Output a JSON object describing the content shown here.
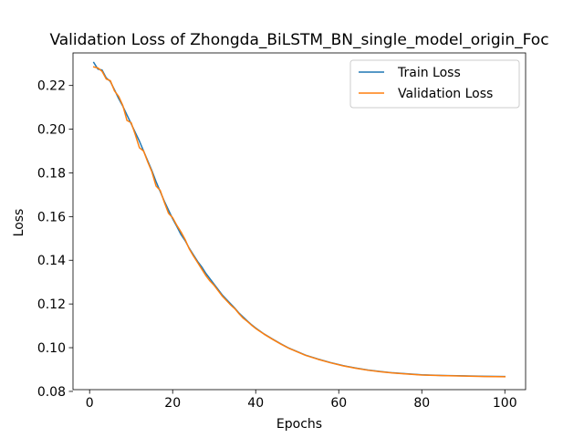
{
  "chart_data": {
    "type": "line",
    "title": "Validation Loss of Zhongda_BiLSTM_BN_single_model_origin_Foc",
    "xlabel": "Epochs",
    "ylabel": "Loss",
    "xlim": [
      -4,
      105
    ],
    "ylim": [
      0.0808,
      0.2349
    ],
    "x_ticks": [
      0,
      20,
      40,
      60,
      80,
      100
    ],
    "y_ticks": [
      0.08,
      0.1,
      0.12,
      0.14,
      0.16,
      0.18,
      0.2,
      0.22
    ],
    "y_tick_labels": [
      "0.08",
      "0.10",
      "0.12",
      "0.14",
      "0.16",
      "0.18",
      "0.20",
      "0.22"
    ],
    "legend_position": "upper right",
    "grid": false,
    "series": [
      {
        "name": "Train Loss",
        "color": "#1f77b4",
        "points": [
          [
            1,
            0.2305
          ],
          [
            2,
            0.2275
          ],
          [
            3,
            0.2271
          ],
          [
            4,
            0.2235
          ],
          [
            5,
            0.2218
          ],
          [
            6,
            0.218
          ],
          [
            7,
            0.214
          ],
          [
            8,
            0.2105
          ],
          [
            9,
            0.2065
          ],
          [
            10,
            0.2025
          ],
          [
            11,
            0.1985
          ],
          [
            12,
            0.1945
          ],
          [
            13,
            0.19
          ],
          [
            14,
            0.1855
          ],
          [
            15,
            0.181
          ],
          [
            16,
            0.176
          ],
          [
            17,
            0.1715
          ],
          [
            18,
            0.167
          ],
          [
            19,
            0.163
          ],
          [
            20,
            0.159
          ],
          [
            21,
            0.1555
          ],
          [
            22,
            0.1518
          ],
          [
            23,
            0.149
          ],
          [
            24,
            0.1455
          ],
          [
            25,
            0.1425
          ],
          [
            26,
            0.1395
          ],
          [
            27,
            0.137
          ],
          [
            28,
            0.134
          ],
          [
            29,
            0.1315
          ],
          [
            30,
            0.129
          ],
          [
            31,
            0.1265
          ],
          [
            32,
            0.124
          ],
          [
            33,
            0.122
          ],
          [
            34,
            0.12
          ],
          [
            35,
            0.118
          ],
          [
            36,
            0.1158
          ],
          [
            37,
            0.114
          ],
          [
            38,
            0.1122
          ],
          [
            39,
            0.1105
          ],
          [
            40,
            0.109
          ],
          [
            42,
            0.1063
          ],
          [
            44,
            0.104
          ],
          [
            46,
            0.1018
          ],
          [
            48,
            0.0998
          ],
          [
            50,
            0.0982
          ],
          [
            52,
            0.0966
          ],
          [
            55,
            0.0948
          ],
          [
            58,
            0.0932
          ],
          [
            61,
            0.0918
          ],
          [
            64,
            0.0907
          ],
          [
            67,
            0.0898
          ],
          [
            70,
            0.0891
          ],
          [
            73,
            0.0885
          ],
          [
            76,
            0.0881
          ],
          [
            80,
            0.0876
          ],
          [
            85,
            0.0873
          ],
          [
            90,
            0.0871
          ],
          [
            95,
            0.0869
          ],
          [
            100,
            0.0868
          ]
        ]
      },
      {
        "name": "Validation Loss",
        "color": "#ff7f0e",
        "points": [
          [
            1,
            0.2285
          ],
          [
            2,
            0.228
          ],
          [
            3,
            0.2265
          ],
          [
            4,
            0.223
          ],
          [
            5,
            0.2222
          ],
          [
            6,
            0.2175
          ],
          [
            7,
            0.215
          ],
          [
            8,
            0.2108
          ],
          [
            9,
            0.204
          ],
          [
            10,
            0.203
          ],
          [
            11,
            0.1975
          ],
          [
            12,
            0.1915
          ],
          [
            13,
            0.19
          ],
          [
            14,
            0.185
          ],
          [
            15,
            0.1805
          ],
          [
            16,
            0.174
          ],
          [
            17,
            0.172
          ],
          [
            18,
            0.1665
          ],
          [
            19,
            0.1615
          ],
          [
            20,
            0.1595
          ],
          [
            21,
            0.156
          ],
          [
            22,
            0.153
          ],
          [
            23,
            0.1495
          ],
          [
            24,
            0.1452
          ],
          [
            25,
            0.142
          ],
          [
            26,
            0.139
          ],
          [
            27,
            0.136
          ],
          [
            28,
            0.133
          ],
          [
            29,
            0.1305
          ],
          [
            30,
            0.1285
          ],
          [
            31,
            0.126
          ],
          [
            32,
            0.1235
          ],
          [
            33,
            0.1215
          ],
          [
            34,
            0.1195
          ],
          [
            35,
            0.1178
          ],
          [
            36,
            0.1155
          ],
          [
            37,
            0.1135
          ],
          [
            38,
            0.112
          ],
          [
            39,
            0.1103
          ],
          [
            40,
            0.1088
          ],
          [
            42,
            0.1062
          ],
          [
            44,
            0.1039
          ],
          [
            46,
            0.1017
          ],
          [
            48,
            0.0997
          ],
          [
            50,
            0.0981
          ],
          [
            52,
            0.0965
          ],
          [
            55,
            0.0947
          ],
          [
            58,
            0.0931
          ],
          [
            61,
            0.0917
          ],
          [
            64,
            0.0906
          ],
          [
            67,
            0.0897
          ],
          [
            70,
            0.089
          ],
          [
            73,
            0.0884
          ],
          [
            76,
            0.088
          ],
          [
            80,
            0.0875
          ],
          [
            85,
            0.0872
          ],
          [
            90,
            0.087
          ],
          [
            95,
            0.0868
          ],
          [
            100,
            0.0867
          ]
        ]
      }
    ]
  }
}
